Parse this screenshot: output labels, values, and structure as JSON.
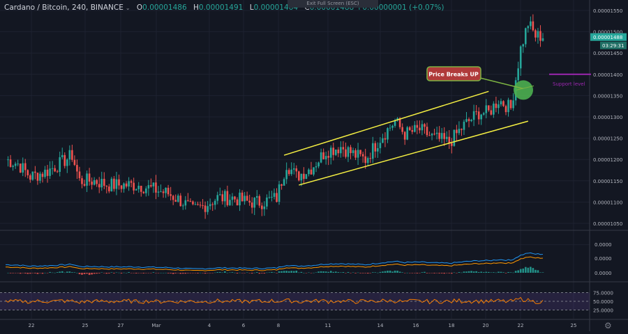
{
  "header": {
    "symbol": "Cardano / Bitcoin, 240, BINANCE",
    "caret": "⌄",
    "open_label": "O",
    "open": "0.00001486",
    "high_label": "H",
    "high": "0.00001491",
    "low_label": "L",
    "low": "0.00001464",
    "close_label": "C",
    "close": "0.00001488",
    "change": "+0.00000001 (+0.07%)"
  },
  "exit_fullscreen": "Exit Full Screen (ESC)",
  "price_axis": {
    "ticks": [
      "0.00001550",
      "0.00001500",
      "0.00001450",
      "0.00001400",
      "0.00001350",
      "0.00001300",
      "0.00001250",
      "0.00001200",
      "0.00001150",
      "0.00001100",
      "0.00001050"
    ],
    "last_price": "0.00001488",
    "countdown": "03:29:31"
  },
  "macd_axis": {
    "ticks": [
      "0.0000",
      "0.0000",
      "0.0000"
    ]
  },
  "rsi_axis": {
    "ticks": [
      "75.0000",
      "50.0000",
      "25.0000"
    ]
  },
  "time_axis": {
    "ticks": [
      "22",
      "25",
      "27",
      "Mar",
      "4",
      "6",
      "8",
      "11",
      "14",
      "16",
      "18",
      "20",
      "22",
      "25"
    ]
  },
  "annotations": {
    "callout": "Price Breaks UP",
    "support_label": "Support level"
  },
  "colors": {
    "background": "#131722",
    "up": "#26a69a",
    "down": "#ef5350",
    "channel": "#f5ef42",
    "support": "#9c27b0",
    "breakout": "#4caf50",
    "macd": "#2196f3",
    "signal": "#ff9800",
    "rsi": "#f57c00"
  },
  "icons": {
    "settings": "gear-icon"
  },
  "chart_data": {
    "type": "candlestick",
    "timeframe": "240",
    "ylim": [
      1.04e-05,
      1.56e-05
    ],
    "x_labels": [
      "22",
      "25",
      "27",
      "Mar",
      "4",
      "6",
      "8",
      "11",
      "14",
      "16",
      "18",
      "20",
      "22",
      "25"
    ],
    "close_path": [
      [
        0,
        1.2e-05
      ],
      [
        5,
        1.19e-05
      ],
      [
        10,
        1.16e-05
      ],
      [
        16,
        1.17e-05
      ],
      [
        22,
        1.19e-05
      ],
      [
        27,
        1.21e-05
      ],
      [
        30,
        1.15e-05
      ],
      [
        36,
        1.15e-05
      ],
      [
        42,
        1.14e-05
      ],
      [
        48,
        1.14e-05
      ],
      [
        54,
        1.14e-05
      ],
      [
        60,
        1.13e-05
      ],
      [
        66,
        1.12e-05
      ],
      [
        72,
        1.1e-05
      ],
      [
        76,
        1.08e-05
      ],
      [
        80,
        1.09e-05
      ],
      [
        86,
        1.11e-05
      ],
      [
        92,
        1.11e-05
      ],
      [
        98,
        1.1e-05
      ],
      [
        104,
        1.1e-05
      ],
      [
        110,
        1.11e-05
      ],
      [
        114,
        1.19e-05
      ],
      [
        118,
        1.16e-05
      ],
      [
        124,
        1.18e-05
      ],
      [
        130,
        1.22e-05
      ],
      [
        136,
        1.23e-05
      ],
      [
        142,
        1.21e-05
      ],
      [
        146,
        1.2e-05
      ],
      [
        152,
        1.25e-05
      ],
      [
        158,
        1.29e-05
      ],
      [
        162,
        1.26e-05
      ],
      [
        168,
        1.27e-05
      ],
      [
        174,
        1.25e-05
      ],
      [
        180,
        1.24e-05
      ],
      [
        186,
        1.28e-05
      ],
      [
        192,
        1.31e-05
      ],
      [
        196,
        1.31e-05
      ],
      [
        200,
        1.34e-05
      ],
      [
        205,
        1.32e-05
      ],
      [
        209,
        1.46e-05
      ],
      [
        212,
        1.52e-05
      ],
      [
        215,
        1.49e-05
      ]
    ],
    "channel_upper": [
      [
        1.21e-05,
        113
      ],
      [
        1.36e-05,
        196
      ]
    ],
    "channel_lower": [
      [
        1.14e-05,
        119
      ],
      [
        1.29e-05,
        212
      ]
    ],
    "support_level": 1.4e-05,
    "breakout": 1.35e-05,
    "rsi_levels": [
      75,
      50,
      25
    ]
  }
}
